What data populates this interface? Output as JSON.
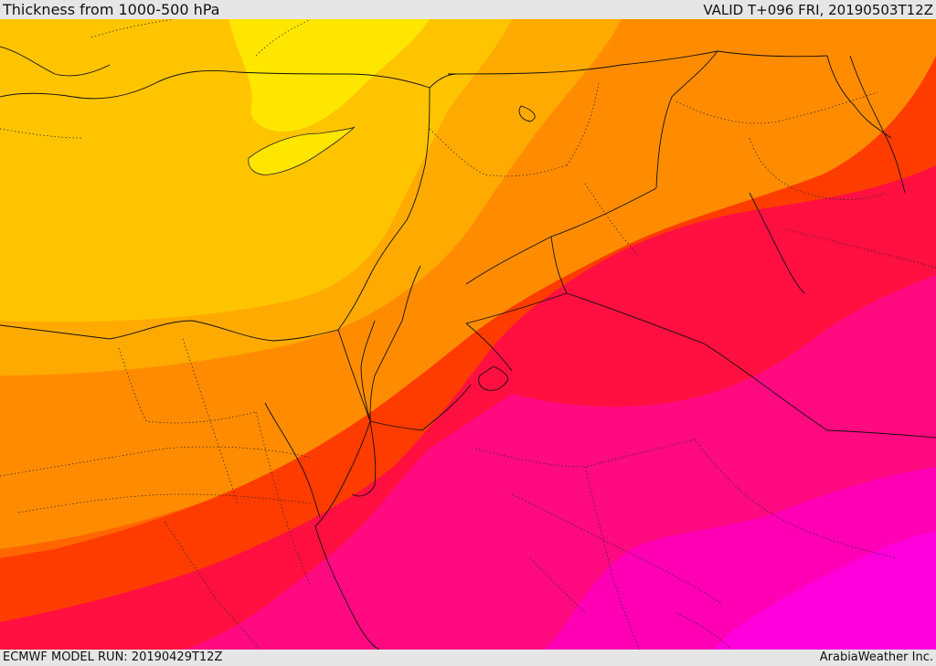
{
  "header": {
    "title": "Thickness from 1000-500 hPa",
    "valid": "VALID T+096 FRI, 20190503T12Z"
  },
  "footer": {
    "model_run": "ECMWF MODEL RUN: 20190429T12Z",
    "credit": "ArabiaWeather Inc."
  },
  "map": {
    "region": "Eastern Mediterranean and Middle East",
    "field": "1000-500 hPa thickness",
    "palette": [
      "#ffe600",
      "#ffc400",
      "#ffaa00",
      "#ff8c00",
      "#ff6600",
      "#ff3c00",
      "#ff1040",
      "#ff0a80",
      "#ff00b4",
      "#ff00dc"
    ]
  }
}
